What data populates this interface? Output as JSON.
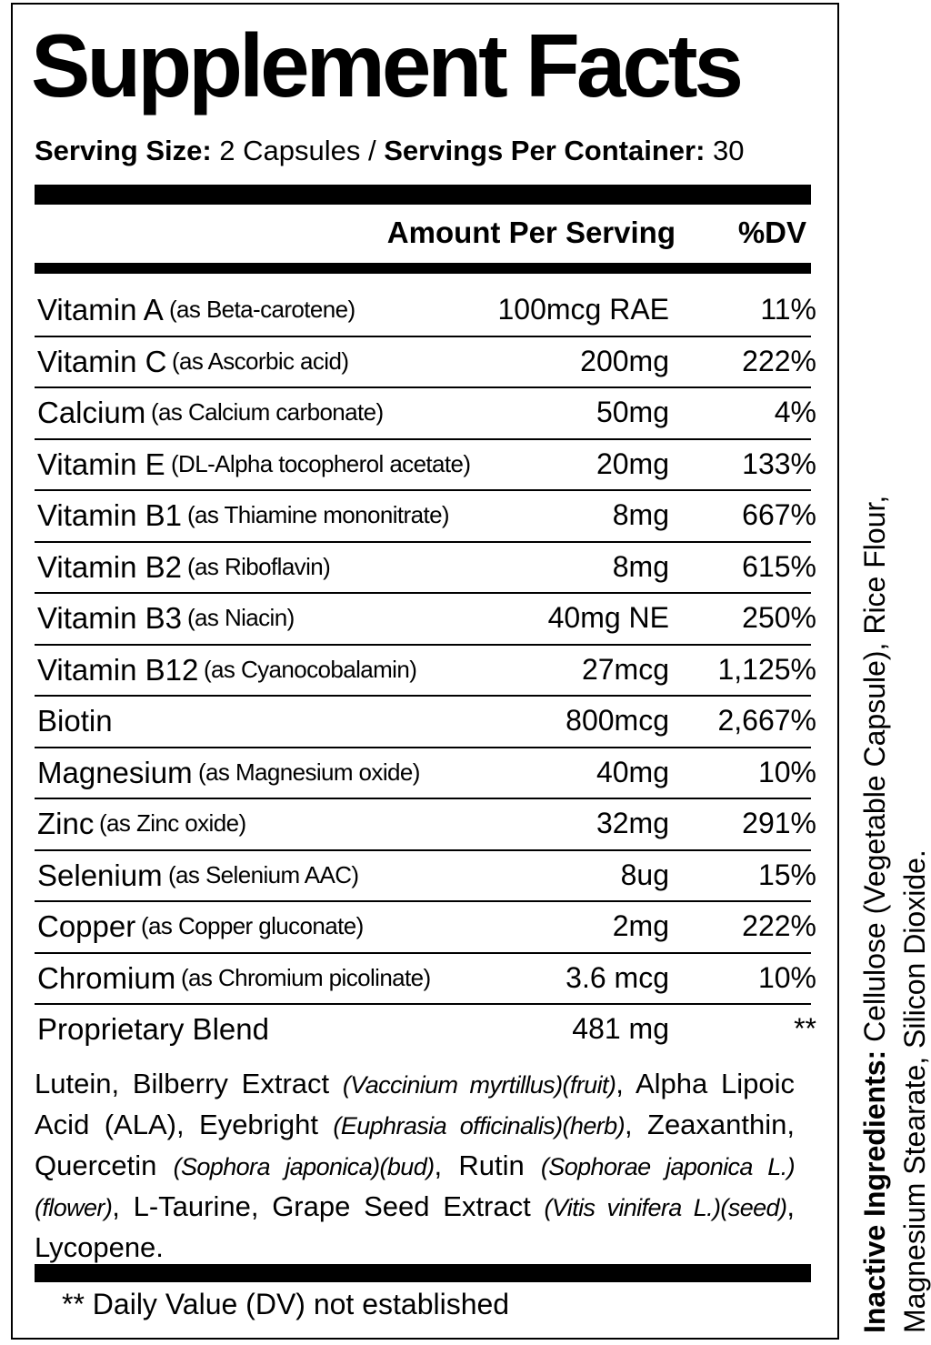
{
  "title": "Supplement Facts",
  "serving": {
    "size_label": "Serving Size:",
    "size_value": " 2 Capsules / ",
    "per_container_label": "Servings Per Container:",
    "per_container_value": " 30"
  },
  "header": {
    "amount": "Amount Per Serving",
    "dv": "%DV"
  },
  "nutrients": [
    {
      "name": "Vitamin A",
      "source": "(as Beta-carotene)",
      "amount": "100mcg RAE",
      "dv": "11%"
    },
    {
      "name": "Vitamin C",
      "source": "(as Ascorbic acid)",
      "amount": "200mg",
      "dv": "222%"
    },
    {
      "name": "Calcium",
      "source": "(as Calcium carbonate)",
      "amount": "50mg",
      "dv": "4%"
    },
    {
      "name": "Vitamin E",
      "source": "(DL-Alpha tocopherol acetate)",
      "amount": "20mg",
      "dv": "133%"
    },
    {
      "name": "Vitamin B1",
      "source": "(as Thiamine mononitrate)",
      "amount": "8mg",
      "dv": "667%"
    },
    {
      "name": "Vitamin B2",
      "source": "(as Riboflavin)",
      "amount": "8mg",
      "dv": "615%"
    },
    {
      "name": "Vitamin B3",
      "source": "(as Niacin)",
      "amount": "40mg NE",
      "dv": "250%"
    },
    {
      "name": "Vitamin B12",
      "source": "(as Cyanocobalamin)",
      "amount": "27mcg",
      "dv": "1,125%"
    },
    {
      "name": "Biotin",
      "source": "",
      "amount": "800mcg",
      "dv": "2,667%"
    },
    {
      "name": "Magnesium",
      "source": "(as Magnesium oxide)",
      "amount": "40mg",
      "dv": "10%"
    },
    {
      "name": "Zinc",
      "source": "(as Zinc oxide)",
      "amount": "32mg",
      "dv": "291%"
    },
    {
      "name": "Selenium",
      "source": "(as Selenium AAC)",
      "amount": "8ug",
      "dv": "15%"
    },
    {
      "name": "Copper",
      "source": "(as Copper gluconate)",
      "amount": "2mg",
      "dv": "222%"
    },
    {
      "name": "Chromium",
      "source": "(as Chromium picolinate)",
      "amount": "3.6 mcg",
      "dv": "10%"
    },
    {
      "name": "Proprietary Blend",
      "source": "",
      "amount": "481 mg",
      "dv": "**"
    }
  ],
  "blend": {
    "p1": "Lutein, Bilberry Extract ",
    "i1": "(Vaccinium myrtillus)(fruit)",
    "p2": ", Alpha Lipoic Acid (ALA), Eyebright ",
    "i2": "(Euphrasia officinalis)(herb)",
    "p3": ", Zeaxanthin, Quercetin ",
    "i3": "(Sophora japonica)(bud)",
    "p4": ", Rutin ",
    "i4": "(Sophorae japonica L.)(flower)",
    "p5": ", L-Taurine, Grape Seed Extract ",
    "i5": "(Vitis vinifera L.)(seed)",
    "p6": ", Lycopene."
  },
  "footnote": "** Daily Value (DV) not established",
  "inactive": {
    "label": "Inactive Ingredients:",
    "text": " Cellulose (Vegetable Capsule),  Rice Flour, Magnesium Stearate, Silicon Dioxide."
  }
}
